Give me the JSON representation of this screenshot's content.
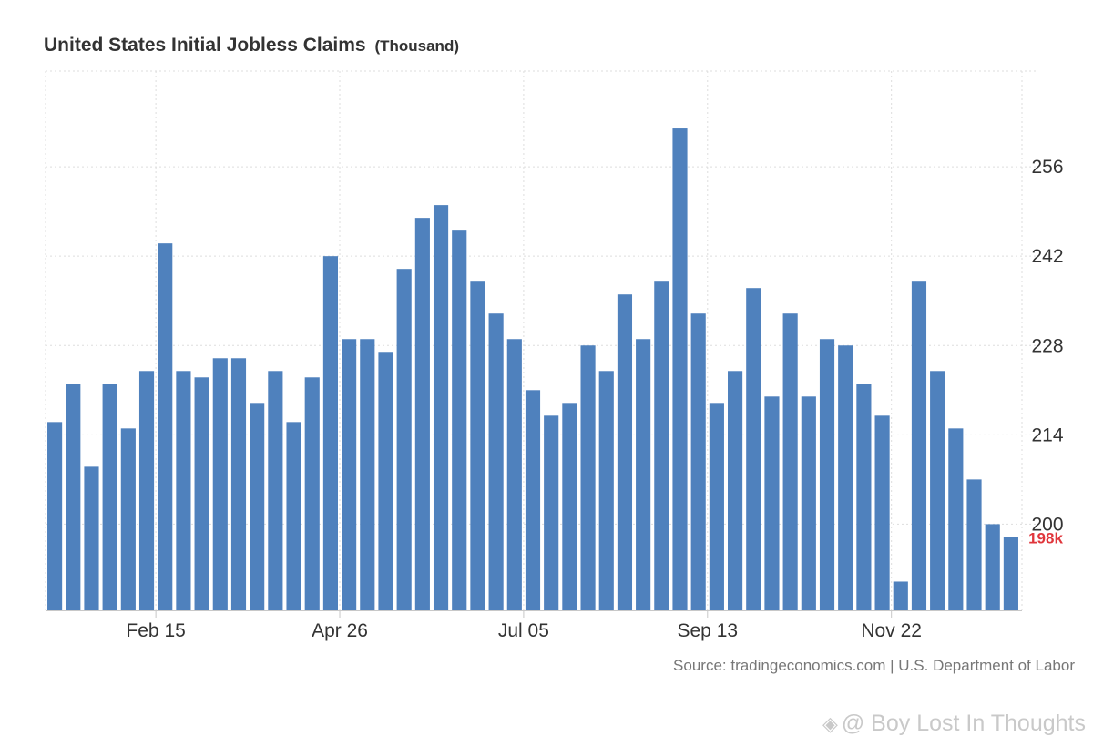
{
  "header": {
    "title": "United States Initial Jobless Claims",
    "unit": "(Thousand)"
  },
  "footer": {
    "source": "Source: tradingeconomics.com | U.S. Department of Labor",
    "watermark_symbol": "◈",
    "watermark": "@ Boy Lost In Thoughts"
  },
  "chart_data": {
    "type": "bar",
    "title": "United States Initial Jobless Claims",
    "unit": "(Thousand)",
    "values": [
      216,
      222,
      209,
      222,
      215,
      224,
      244,
      224,
      223,
      226,
      226,
      219,
      224,
      216,
      223,
      242,
      229,
      229,
      227,
      240,
      248,
      250,
      246,
      238,
      233,
      229,
      221,
      217,
      219,
      228,
      224,
      236,
      229,
      238,
      262,
      233,
      219,
      224,
      237,
      220,
      233,
      220,
      229,
      228,
      222,
      217,
      191,
      238,
      224,
      215,
      207,
      200,
      198
    ],
    "x_tick_labels": [
      {
        "label": "Feb 15",
        "index": 5.5
      },
      {
        "label": "Apr 26",
        "index": 15.5
      },
      {
        "label": "Jul 05",
        "index": 25.5
      },
      {
        "label": "Sep 13",
        "index": 35.5
      },
      {
        "label": "Nov 22",
        "index": 45.5
      }
    ],
    "y_ticks": [
      200,
      214,
      228,
      242,
      256
    ],
    "ylim": [
      186.5,
      271
    ],
    "last_value_label": "198k",
    "bar_color": "#4f81bd",
    "last_label_color": "#e0363c",
    "grid": true,
    "y_axis_side": "right"
  }
}
